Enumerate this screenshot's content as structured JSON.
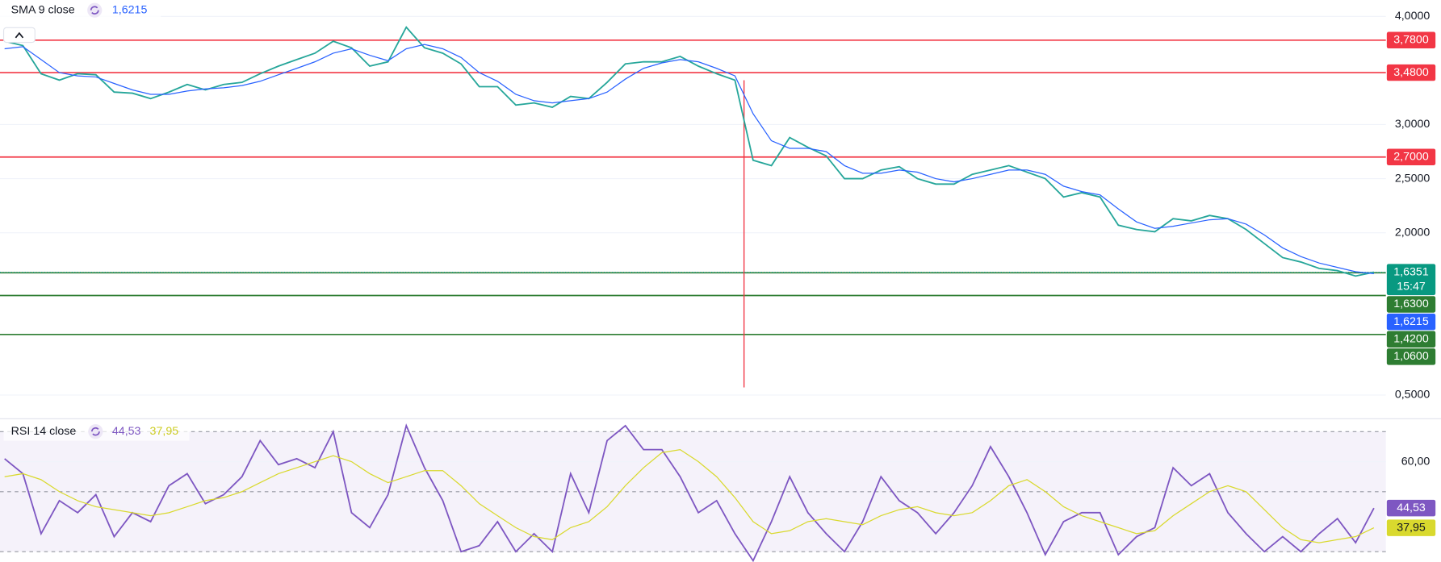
{
  "chart_data": [
    {
      "type": "line",
      "series": [
        {
          "color": "#26a69a",
          "last_label": "1,6351",
          "countdown": "15:47",
          "wick_low": 0.57,
          "values": [
            3.77,
            3.73,
            3.47,
            3.41,
            3.47,
            3.46,
            3.3,
            3.29,
            3.24,
            3.3,
            3.37,
            3.32,
            3.37,
            3.39,
            3.47,
            3.54,
            3.6,
            3.66,
            3.77,
            3.71,
            3.54,
            3.58,
            3.9,
            3.71,
            3.66,
            3.56,
            3.35,
            3.35,
            3.18,
            3.2,
            3.16,
            3.26,
            3.24,
            3.39,
            3.56,
            3.58,
            3.58,
            3.63,
            3.54,
            3.47,
            3.41,
            2.67,
            2.62,
            2.88,
            2.79,
            2.71,
            2.5,
            2.5,
            2.58,
            2.61,
            2.5,
            2.45,
            2.45,
            2.54,
            2.58,
            2.62,
            2.56,
            2.5,
            2.33,
            2.37,
            2.33,
            2.07,
            2.03,
            2.01,
            2.13,
            2.11,
            2.16,
            2.13,
            2.03,
            1.9,
            1.77,
            1.73,
            1.67,
            1.65,
            1.6,
            1.6351
          ]
        },
        {
          "name": "SMA 9 close",
          "color": "#2962ff",
          "last_label": "1,6215",
          "values": [
            3.7,
            3.72,
            3.6,
            3.48,
            3.45,
            3.44,
            3.38,
            3.32,
            3.28,
            3.28,
            3.31,
            3.33,
            3.34,
            3.36,
            3.4,
            3.46,
            3.52,
            3.58,
            3.66,
            3.7,
            3.64,
            3.59,
            3.7,
            3.74,
            3.7,
            3.62,
            3.48,
            3.4,
            3.28,
            3.22,
            3.2,
            3.22,
            3.24,
            3.3,
            3.42,
            3.52,
            3.57,
            3.6,
            3.58,
            3.52,
            3.45,
            3.1,
            2.85,
            2.78,
            2.78,
            2.75,
            2.62,
            2.55,
            2.55,
            2.58,
            2.56,
            2.5,
            2.47,
            2.5,
            2.54,
            2.58,
            2.58,
            2.54,
            2.43,
            2.38,
            2.35,
            2.22,
            2.1,
            2.04,
            2.06,
            2.09,
            2.12,
            2.13,
            2.08,
            1.98,
            1.86,
            1.78,
            1.72,
            1.68,
            1.64,
            1.6215
          ]
        }
      ],
      "levels": [
        {
          "value": 3.78,
          "label": "3,7800",
          "color": "#f23645"
        },
        {
          "value": 3.48,
          "label": "3,4800",
          "color": "#f23645"
        },
        {
          "value": 2.7,
          "label": "2,7000",
          "color": "#f23645"
        },
        {
          "value": 1.63,
          "label": "1,6300",
          "color": "#2e7d32"
        },
        {
          "value": 1.42,
          "label": "1,4200",
          "color": "#2e7d32"
        },
        {
          "value": 1.06,
          "label": "1,0600",
          "color": "#2e7d32"
        }
      ],
      "ylim": [
        0.29,
        4.15
      ],
      "yticks": [
        {
          "value": 4,
          "label": "4,0000"
        },
        {
          "value": 3,
          "label": "3,0000"
        },
        {
          "value": 2.5,
          "label": "2,5000"
        },
        {
          "value": 2,
          "label": "2,0000"
        },
        {
          "value": 0.5,
          "label": "0,5000"
        }
      ],
      "grid": true
    },
    {
      "type": "line",
      "title": "RSI 14 close",
      "series": [
        {
          "color": "#7e57c2",
          "last_label": "44,53",
          "values": [
            61,
            56,
            36,
            47,
            43,
            49,
            35,
            43,
            40,
            52,
            56,
            46,
            49,
            55,
            67,
            59,
            61,
            58,
            70,
            43,
            38,
            49,
            72,
            58,
            47,
            30,
            32,
            40,
            30,
            36,
            30,
            56,
            43,
            67,
            72,
            64,
            64,
            55,
            43,
            47,
            36,
            27,
            40,
            55,
            43,
            36,
            30,
            40,
            55,
            47,
            43,
            36,
            43,
            52,
            65,
            55,
            43,
            29,
            40,
            43,
            43,
            29,
            35,
            38,
            58,
            52,
            56,
            43,
            36,
            30,
            35,
            30,
            36,
            41,
            33,
            44.53
          ]
        },
        {
          "color": "#d9d92e",
          "last_label": "37,95",
          "values": [
            55,
            56,
            54,
            50,
            47,
            45,
            44,
            43,
            42,
            43,
            45,
            47,
            48,
            50,
            53,
            56,
            58,
            60,
            62,
            60,
            56,
            53,
            55,
            57,
            57,
            52,
            46,
            42,
            38,
            35,
            34,
            38,
            40,
            45,
            52,
            58,
            63,
            64,
            60,
            55,
            48,
            40,
            36,
            37,
            40,
            41,
            40,
            39,
            42,
            44,
            45,
            43,
            42,
            43,
            47,
            52,
            54,
            50,
            45,
            42,
            40,
            38,
            36,
            37,
            42,
            46,
            50,
            52,
            50,
            44,
            38,
            34,
            33,
            34,
            35,
            37.95
          ]
        }
      ],
      "band": [
        30,
        70
      ],
      "band_lines": [
        70,
        50,
        30
      ],
      "ylim": [
        26.6,
        73.1
      ],
      "yticks": [
        {
          "value": 60,
          "label": "60,00"
        }
      ],
      "grid": true
    }
  ]
}
